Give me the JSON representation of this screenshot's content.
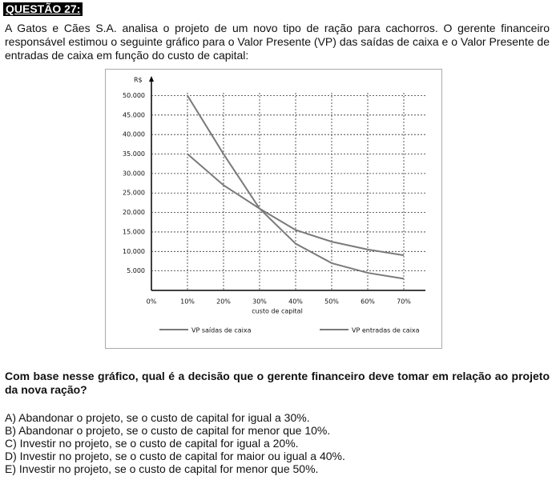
{
  "header": {
    "title": "QUESTÃO 27:"
  },
  "intro": "A Gatos e Cães S.A. analisa o projeto de um novo tipo de ração para cachorros. O gerente financeiro responsável estimou o seguinte gráfico para o Valor Presente (VP) das saídas de caixa e o Valor Presente de entradas de caixa em função do custo de capital:",
  "chart_data": {
    "type": "line",
    "ylabel": "R$",
    "xlabel": "custo de capital",
    "x": [
      10,
      20,
      30,
      40,
      50,
      60,
      70
    ],
    "series": [
      {
        "name": "VP saídas de caixa",
        "color": "#7a7a7a",
        "values": [
          50000,
          35000,
          21000,
          12000,
          7000,
          4500,
          3000
        ]
      },
      {
        "name": "VP entradas de caixa",
        "color": "#7a7a7a",
        "values": [
          35000,
          27000,
          21000,
          15500,
          12500,
          10500,
          9000
        ]
      }
    ],
    "xlim": [
      0,
      70
    ],
    "ylim": [
      0,
      54000
    ],
    "xticks": [
      {
        "value": 0,
        "label": "0%"
      },
      {
        "value": 10,
        "label": "10%"
      },
      {
        "value": 20,
        "label": "20%"
      },
      {
        "value": 30,
        "label": "30%"
      },
      {
        "value": 40,
        "label": "40%"
      },
      {
        "value": 50,
        "label": "50%"
      },
      {
        "value": 60,
        "label": "60%"
      },
      {
        "value": 70,
        "label": "70%"
      }
    ],
    "yticks": [
      {
        "value": 5000,
        "label": "5.000"
      },
      {
        "value": 10000,
        "label": "10.000"
      },
      {
        "value": 15000,
        "label": "15.000"
      },
      {
        "value": 20000,
        "label": "20.000"
      },
      {
        "value": 25000,
        "label": "25.000"
      },
      {
        "value": 30000,
        "label": "30.000"
      },
      {
        "value": 35000,
        "label": "35.000"
      },
      {
        "value": 40000,
        "label": "40.000"
      },
      {
        "value": 45000,
        "label": "45.000"
      },
      {
        "value": 50000,
        "label": "50.000"
      }
    ],
    "grid": true
  },
  "question": "Com base nesse gráfico, qual é a decisão que o gerente financeiro deve tomar em relação ao projeto da nova ração?",
  "options": [
    "A) Abandonar o projeto, se o custo de capital for igual a 30%.",
    "B) Abandonar o projeto, se o custo de capital for menor que 10%.",
    "C) Investir no projeto, se o custo de capital for igual a 20%.",
    "D) Investir no projeto, se o custo de capital for maior ou igual a 40%.",
    "E) Investir no projeto, se o custo de capital for menor que 50%."
  ]
}
